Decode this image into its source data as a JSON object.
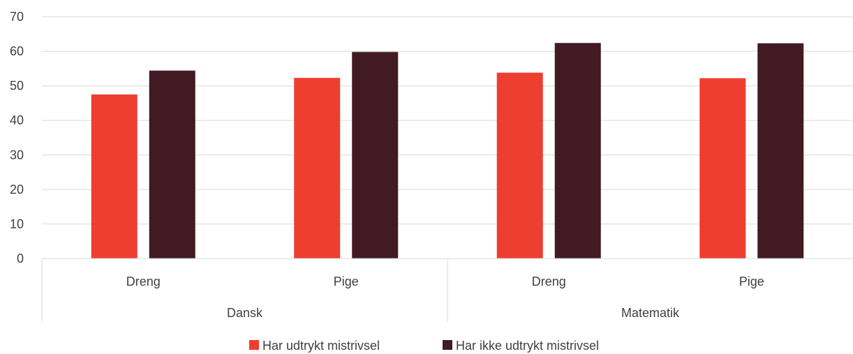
{
  "chart_data": {
    "type": "bar",
    "groups": [
      "Dansk",
      "Matematik"
    ],
    "categories": [
      "Dreng",
      "Pige",
      "Dreng",
      "Pige"
    ],
    "category_group": [
      0,
      0,
      1,
      1
    ],
    "series": [
      {
        "name": "Har udtrykt mistrivsel",
        "color": "#EE3E2F",
        "values": [
          47.5,
          52.3,
          53.8,
          52.2
        ]
      },
      {
        "name": "Har ikke udtrykt mistrivsel",
        "color": "#421A24",
        "values": [
          54.4,
          59.8,
          62.4,
          62.3
        ]
      }
    ],
    "ylim": [
      0,
      70
    ],
    "yticks": [
      0,
      10,
      20,
      30,
      40,
      50,
      60,
      70
    ],
    "grid": true,
    "legend_position": "bottom",
    "title": "",
    "xlabel": "",
    "ylabel": ""
  }
}
